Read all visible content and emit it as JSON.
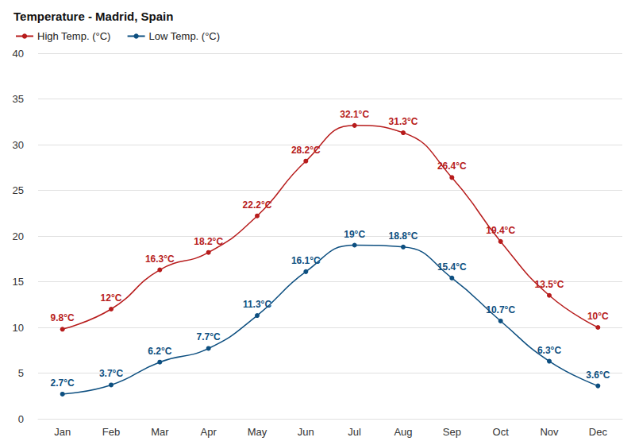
{
  "chart_data": {
    "type": "line",
    "title": "Temperature - Madrid, Spain",
    "categories": [
      "Jan",
      "Feb",
      "Mar",
      "Apr",
      "May",
      "Jun",
      "Jul",
      "Aug",
      "Sep",
      "Oct",
      "Nov",
      "Dec"
    ],
    "series": [
      {
        "name": "High Temp. (°C)",
        "color": "#b71c1c",
        "values": [
          9.8,
          12,
          16.3,
          18.2,
          22.2,
          28.2,
          32.1,
          31.3,
          26.4,
          19.4,
          13.5,
          10
        ],
        "value_labels": [
          "9.8°C",
          "12°C",
          "16.3°C",
          "18.2°C",
          "22.2°C",
          "28.2°C",
          "32.1°C",
          "31.3°C",
          "26.4°C",
          "19.4°C",
          "13.5°C",
          "10°C"
        ]
      },
      {
        "name": "Low Temp. (°C)",
        "color": "#0d4f80",
        "values": [
          2.7,
          3.7,
          6.2,
          7.7,
          11.3,
          16.1,
          19,
          18.8,
          15.4,
          10.7,
          6.3,
          3.6
        ],
        "value_labels": [
          "2.7°C",
          "3.7°C",
          "6.2°C",
          "7.7°C",
          "11.3°C",
          "16.1°C",
          "19°C",
          "18.8°C",
          "15.4°C",
          "10.7°C",
          "6.3°C",
          "3.6°C"
        ]
      }
    ],
    "ylim": [
      0,
      40
    ],
    "yticks": [
      0,
      5,
      10,
      15,
      20,
      25,
      30,
      35,
      40
    ],
    "grid": true,
    "legend": "top-left",
    "data_labels": true,
    "marker": "circle",
    "line_style": "solid"
  }
}
